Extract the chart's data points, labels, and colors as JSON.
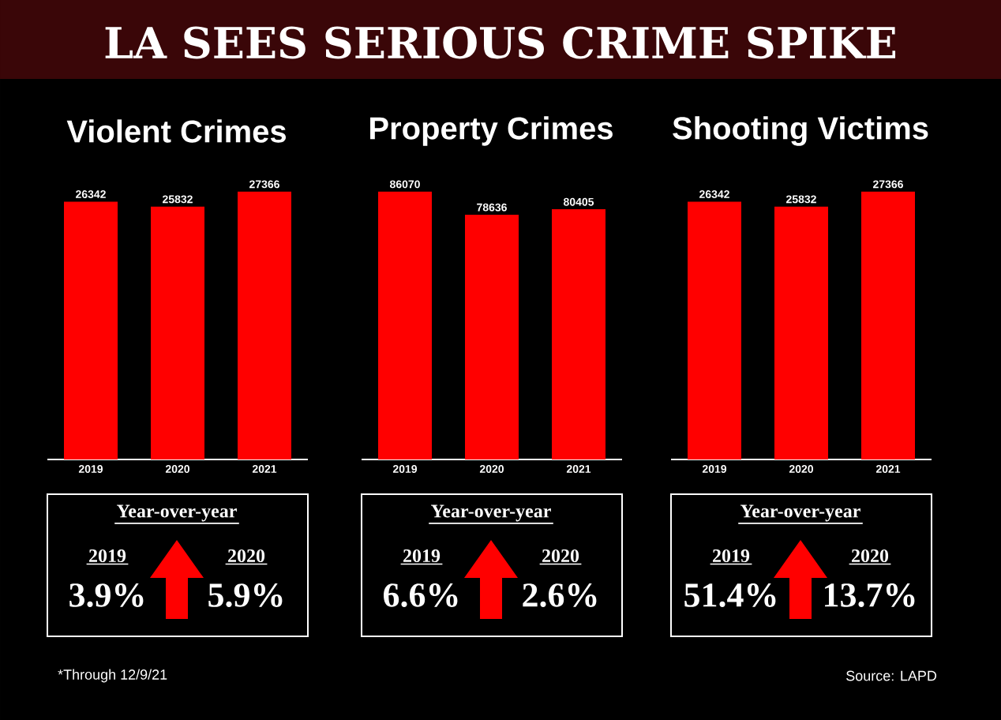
{
  "chart_data": [
    {
      "type": "bar",
      "title": "Violent Crimes",
      "categories": [
        "2019",
        "2020",
        "2021"
      ],
      "values": [
        26342,
        25832,
        27366
      ],
      "color": "#ff0000",
      "data_labels": true,
      "annotations": [
        "Year-over-year",
        "2019",
        "3.9%",
        "2020",
        "5.9%"
      ]
    },
    {
      "type": "bar",
      "title": "Property Crimes",
      "categories": [
        "2019",
        "2020",
        "2021"
      ],
      "values": [
        86070,
        78636,
        80405
      ],
      "color": "#ff0000",
      "data_labels": true,
      "annotations": [
        "Year-over-year",
        "2019",
        "6.6%",
        "2020",
        "2.6%"
      ]
    },
    {
      "type": "bar",
      "title": "Shooting Victims",
      "categories": [
        "2019",
        "2020",
        "2021"
      ],
      "values": [
        26342,
        25832,
        27366
      ],
      "color": "#ff0000",
      "data_labels": true,
      "annotations": [
        "Year-over-year",
        "2019",
        "51.4%",
        "2020",
        "13.7%"
      ]
    },
    {
      "type": "other",
      "title": "LA SEES SERIOUS CRIME SPIKE",
      "annotations": [
        "*Through 12/9/21",
        "Source: LAPD"
      ]
    }
  ]
}
